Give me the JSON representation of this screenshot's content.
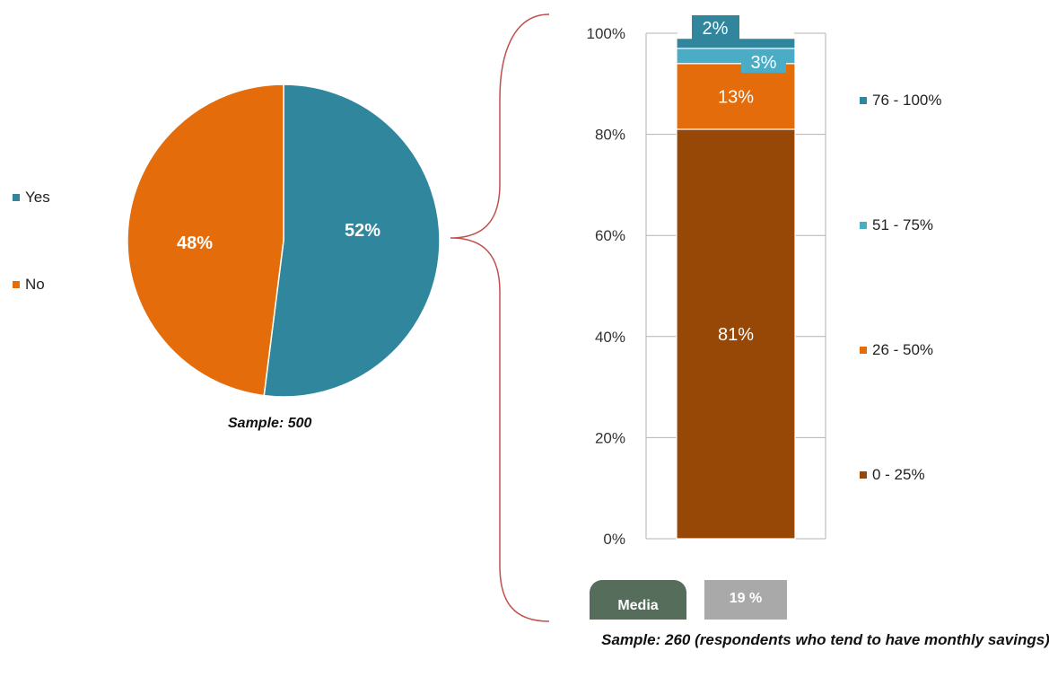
{
  "chart_data": [
    {
      "type": "pie",
      "slices": [
        {
          "label": "Yes",
          "value": 52,
          "display": "52%",
          "color": "#30869d"
        },
        {
          "label": "No",
          "value": 48,
          "display": "48%",
          "color": "#e46c0a"
        }
      ],
      "legend": [
        "Yes",
        "No"
      ],
      "legend_position": "left",
      "sample_label": "Sample: 500"
    },
    {
      "type": "bar",
      "stacked": true,
      "percent_stacked": true,
      "categories": [
        ""
      ],
      "series": [
        {
          "name": "0 - 25%",
          "values": [
            81
          ],
          "display": "81%",
          "color": "#974706"
        },
        {
          "name": "26 - 50%",
          "values": [
            13
          ],
          "display": "13%",
          "color": "#e46c0a"
        },
        {
          "name": "51 - 75%",
          "values": [
            3
          ],
          "display": "3%",
          "color": "#4bacc6"
        },
        {
          "name": "76 - 100%",
          "values": [
            2
          ],
          "display": "2%",
          "color": "#31859c"
        }
      ],
      "y_ticks": [
        "0%",
        "20%",
        "40%",
        "60%",
        "80%",
        "100%"
      ],
      "ylim": [
        0,
        100
      ],
      "legend_position": "right",
      "median_label": "Media",
      "median_value": "19 %",
      "sample_label": "Sample: 260 (respondents who tend to have monthly savings)"
    }
  ]
}
